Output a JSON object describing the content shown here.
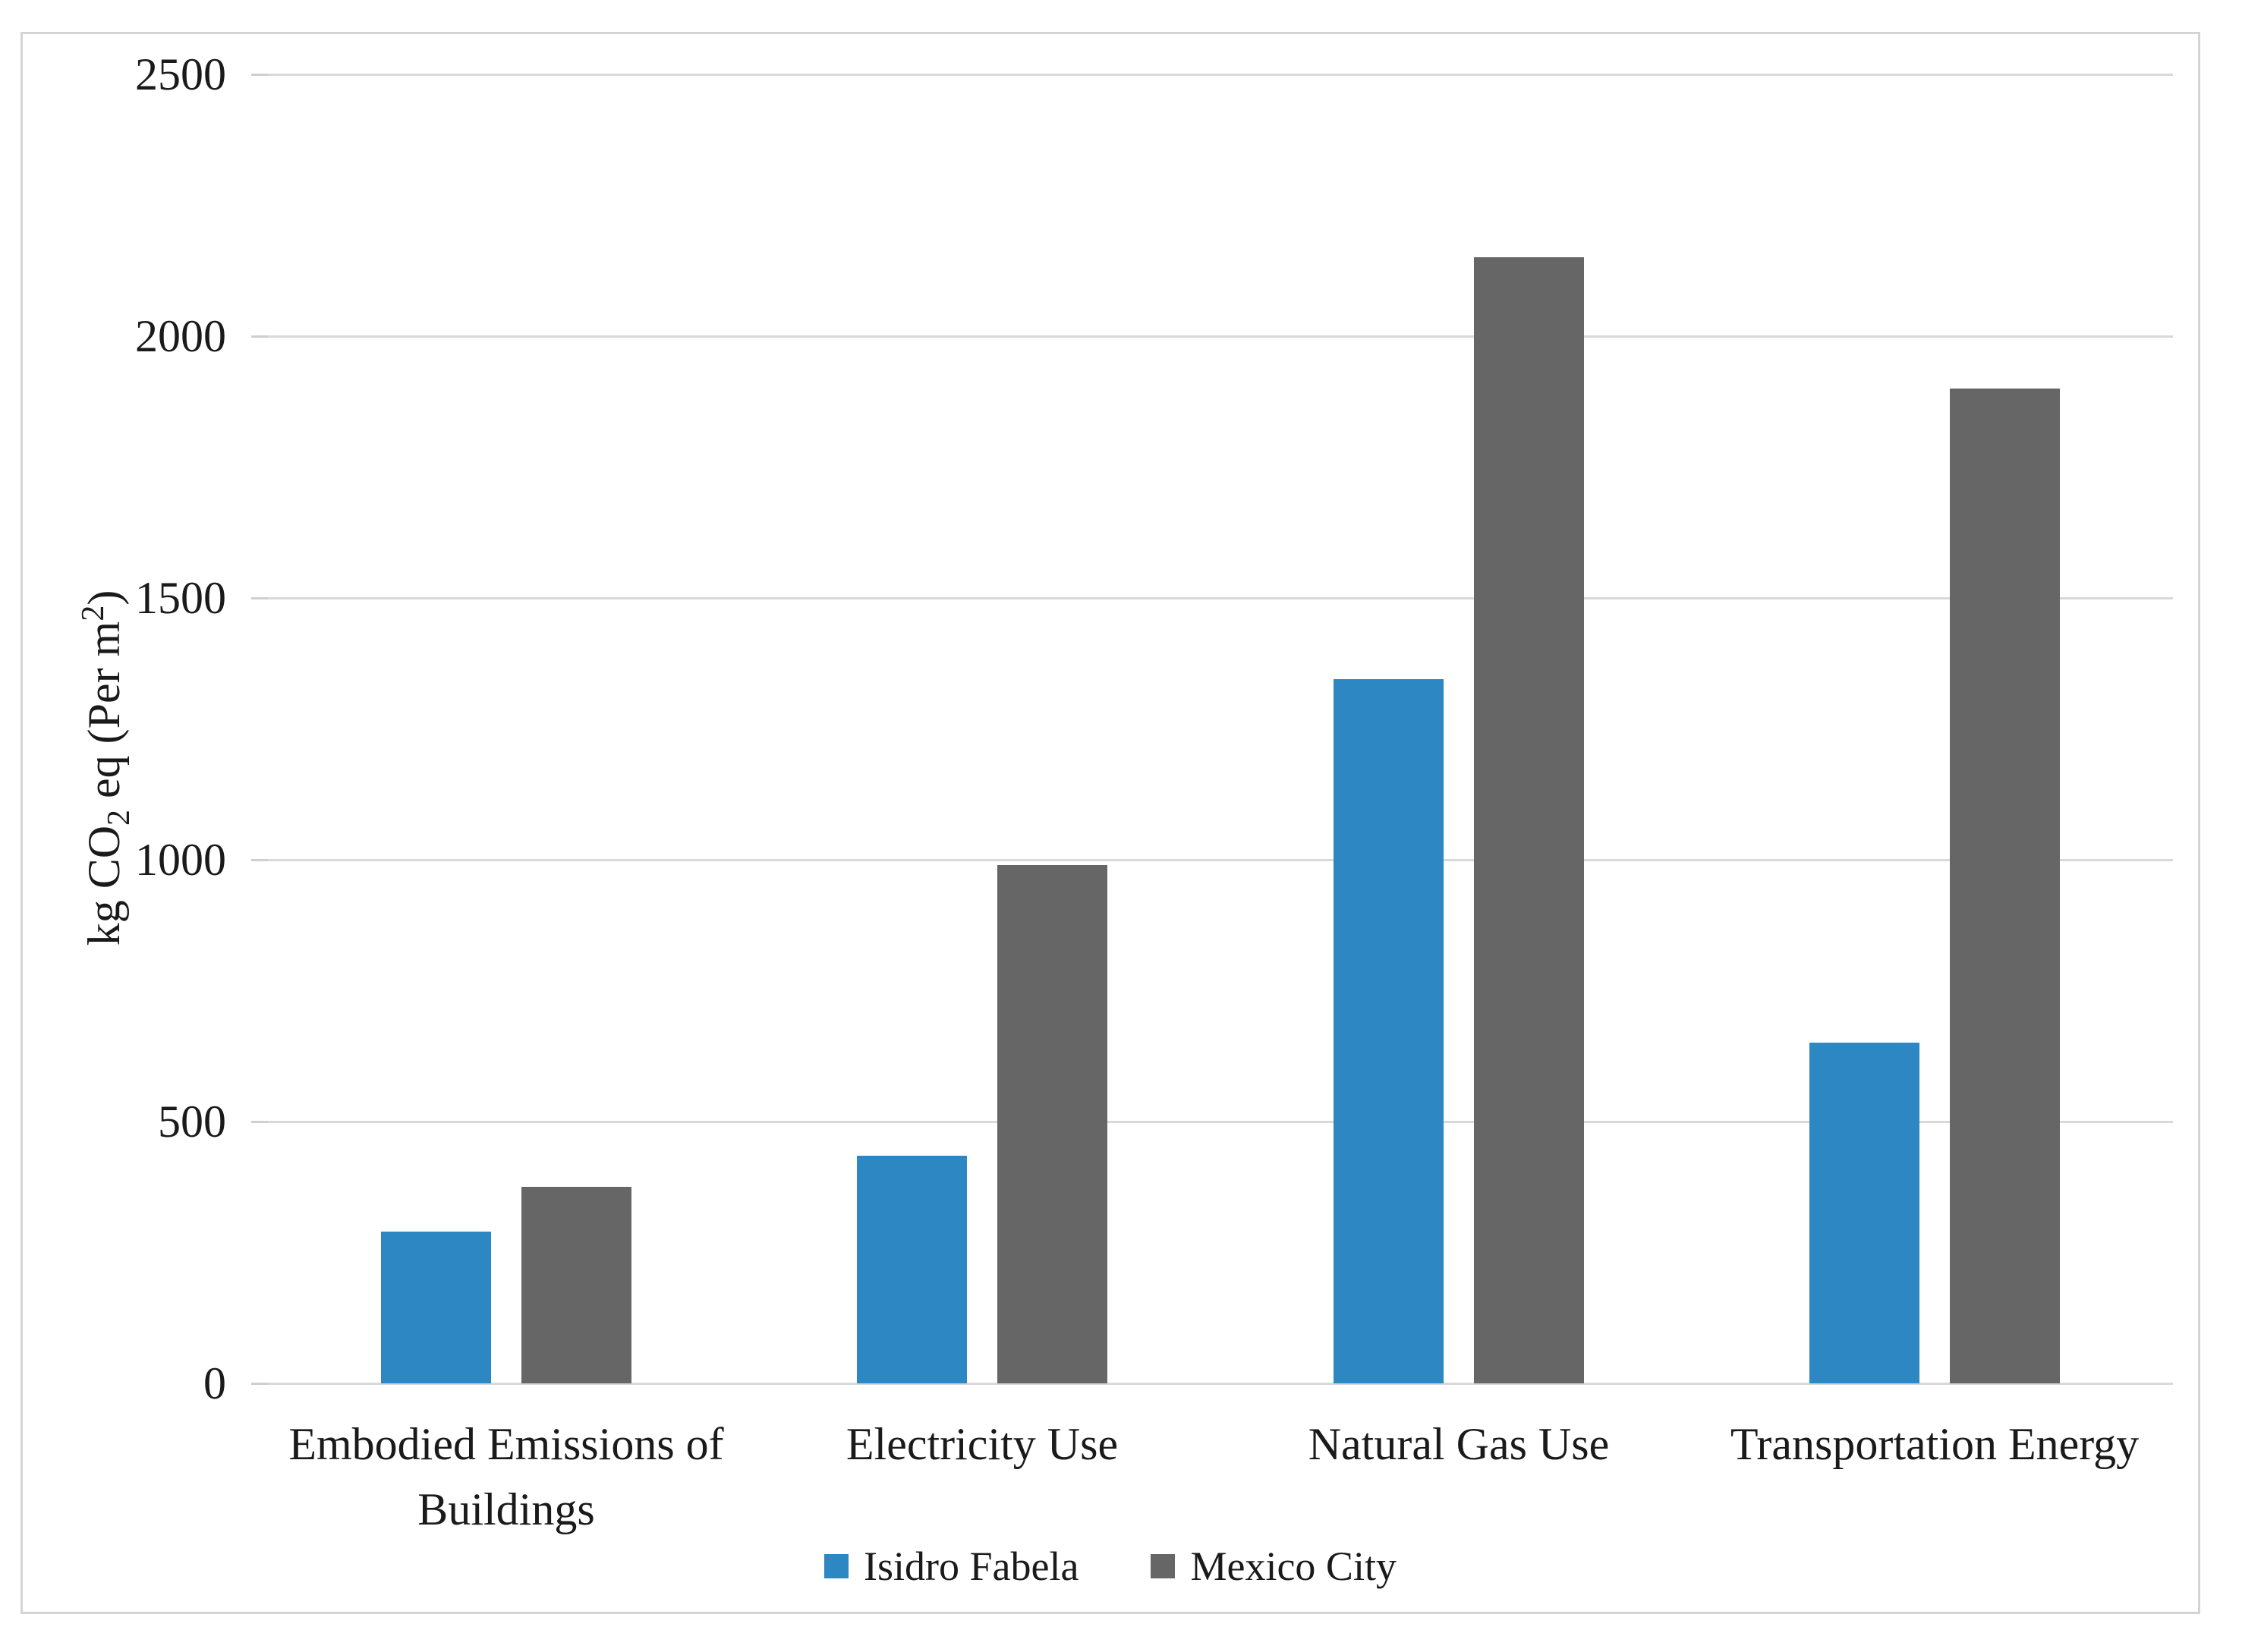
{
  "chart_data": {
    "type": "bar",
    "title": "",
    "categories": [
      "Embodied Emissions of Buildings",
      "Electricity Use",
      "Natural Gas Use",
      "Transportation Energy"
    ],
    "series": [
      {
        "name": "Isidro Fabela",
        "color": "#2d87c2",
        "values": [
          290,
          435,
          1345,
          650
        ]
      },
      {
        "name": "Mexico City",
        "color": "#666666",
        "values": [
          375,
          990,
          2150,
          1900
        ]
      }
    ],
    "xlabel": "",
    "ylabel": "kg CO2 eq (Per m2)",
    "ylabel_parts": {
      "pre": "kg CO",
      "sub": "2",
      "mid": " eq (Per m",
      "sup": "2",
      "post": ")"
    },
    "ylim": [
      0,
      2500
    ],
    "yticks": [
      0,
      500,
      1000,
      1500,
      2000,
      2500
    ],
    "grid": true,
    "legend_position": "bottom",
    "colors": {
      "gridline": "#d9d9d9",
      "frame_border": "#d4d4d4",
      "text": "#1a1a1a"
    }
  }
}
